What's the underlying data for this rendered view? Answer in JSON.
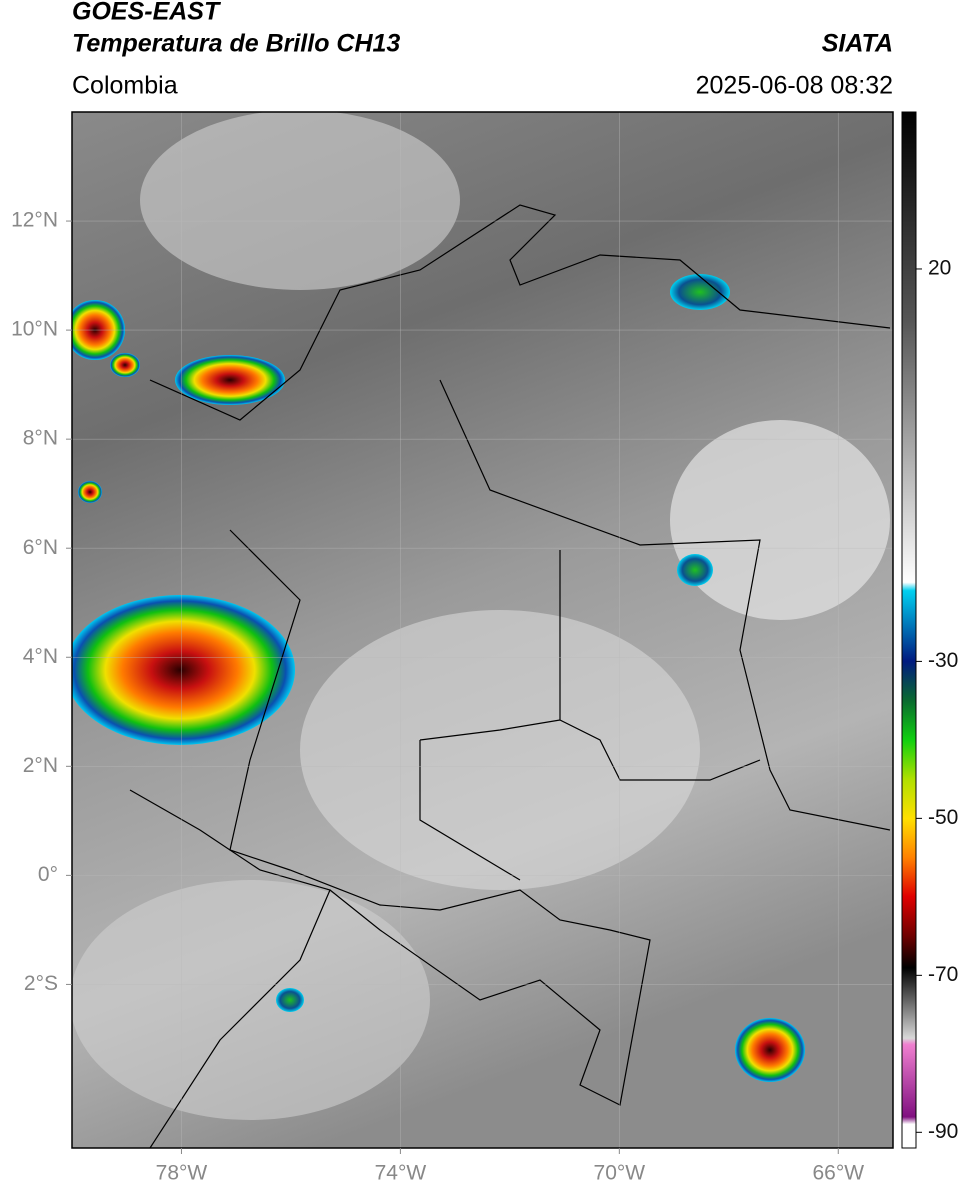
{
  "header": {
    "title": "GOES-EAST",
    "subtitle": "Temperatura de Brillo CH13",
    "source": "SIATA",
    "region": "Colombia",
    "datetime": "2025-06-08 08:32"
  },
  "map": {
    "xlim": [
      -80,
      -65
    ],
    "ylim": [
      -5,
      14
    ],
    "xticks": [
      {
        "value": -78,
        "label": "78°W"
      },
      {
        "value": -74,
        "label": "74°W"
      },
      {
        "value": -70,
        "label": "70°W"
      },
      {
        "value": -66,
        "label": "66°W"
      }
    ],
    "yticks": [
      {
        "value": 12,
        "label": "12°N"
      },
      {
        "value": 10,
        "label": "10°N"
      },
      {
        "value": 8,
        "label": "8°N"
      },
      {
        "value": 6,
        "label": "6°N"
      },
      {
        "value": 4,
        "label": "4°N"
      },
      {
        "value": 2,
        "label": "2°N"
      },
      {
        "value": 0,
        "label": "0°"
      },
      {
        "value": -2,
        "label": "2°S"
      }
    ],
    "grid": true
  },
  "colorbar": {
    "lim": [
      40,
      -92
    ],
    "ticks": [
      20,
      -30,
      -50,
      -70,
      -90
    ]
  }
}
